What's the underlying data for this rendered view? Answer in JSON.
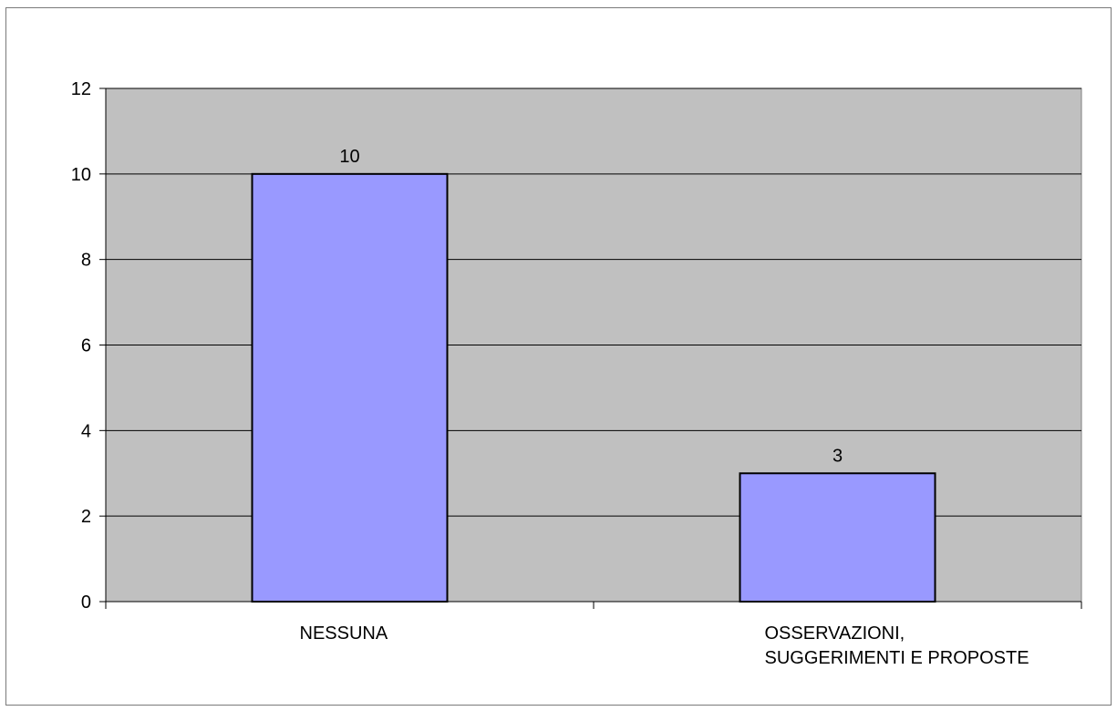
{
  "chart_data": {
    "type": "bar",
    "categories": [
      [
        "NESSUNA"
      ],
      [
        "OSSERVAZIONI,",
        "SUGGERIMENTI E PROPOSTE"
      ]
    ],
    "values": [
      10,
      3
    ],
    "data_labels": [
      "10",
      "3"
    ],
    "title": "",
    "xlabel": "",
    "ylabel": "",
    "ylim": [
      0,
      12
    ],
    "yticks": [
      "0",
      "2",
      "4",
      "6",
      "8",
      "10",
      "12"
    ],
    "grid": true,
    "legend": "none",
    "colors": {
      "bar_fill": "#9999ff",
      "bar_stroke": "#000000",
      "plot_background": "#c0c0c0",
      "gridline": "#000000"
    }
  }
}
